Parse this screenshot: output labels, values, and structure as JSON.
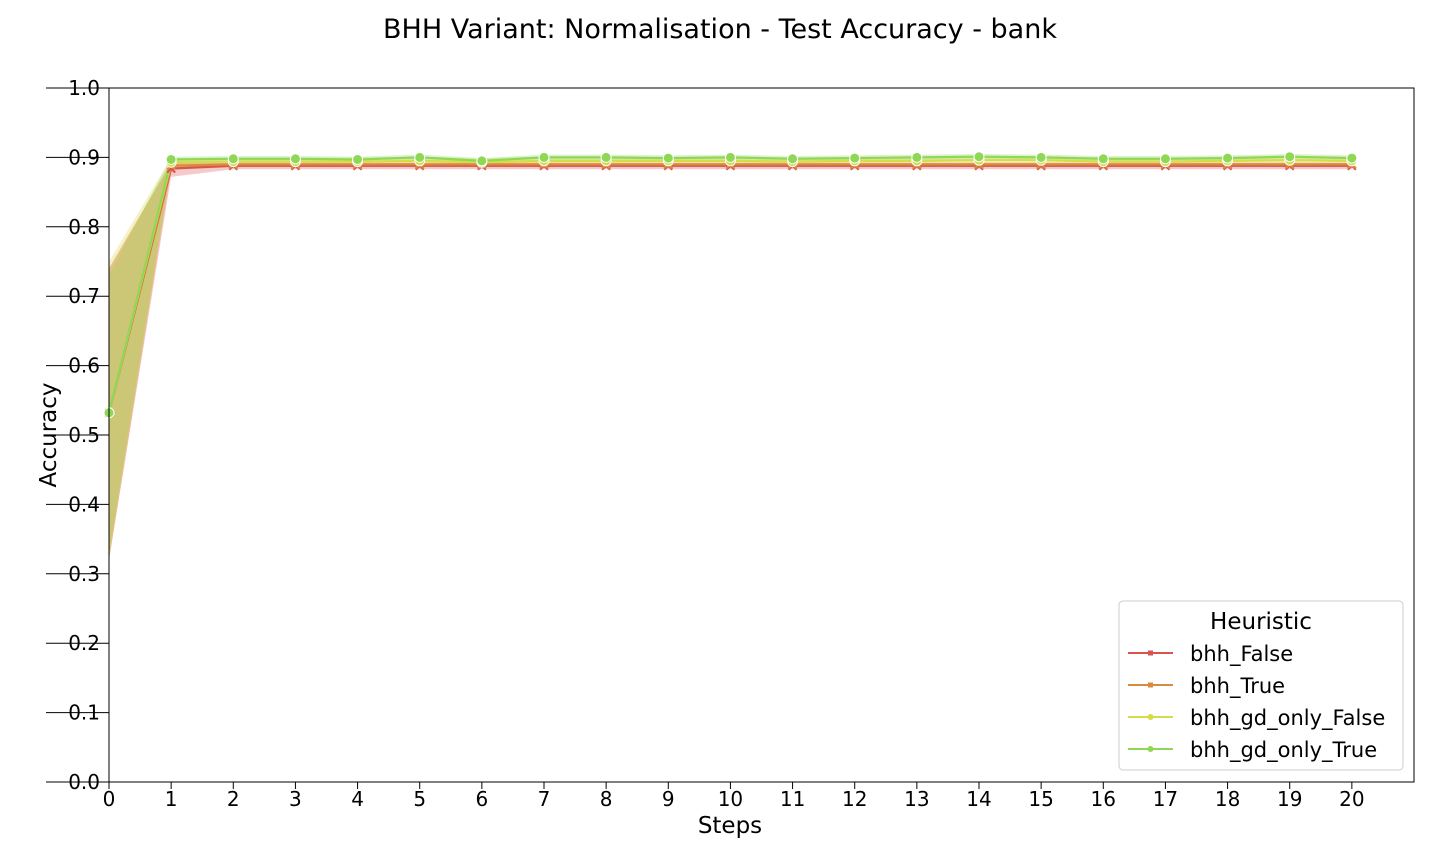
{
  "chart_data": {
    "type": "line",
    "title": "BHH Variant: Normalisation - Test Accuracy - bank",
    "xlabel": "Steps",
    "ylabel": "Accuracy",
    "xlim": [
      0,
      21
    ],
    "ylim": [
      0.0,
      1.0
    ],
    "x_ticks": [
      0,
      1,
      2,
      3,
      4,
      5,
      6,
      7,
      8,
      9,
      10,
      11,
      12,
      13,
      14,
      15,
      16,
      17,
      18,
      19,
      20
    ],
    "y_ticks": [
      0.0,
      0.1,
      0.2,
      0.3,
      0.4,
      0.5,
      0.6,
      0.7,
      0.8,
      0.9,
      1.0
    ],
    "legend": {
      "title": "Heuristic",
      "placement": "lower-right"
    },
    "x": [
      0,
      1,
      2,
      3,
      4,
      5,
      6,
      7,
      8,
      9,
      10,
      11,
      12,
      13,
      14,
      15,
      16,
      17,
      18,
      19,
      20
    ],
    "series": [
      {
        "name": "bhh_False",
        "color": "#d9534f",
        "marker": "x",
        "values": [
          0.532,
          0.884,
          0.888,
          0.888,
          0.888,
          0.888,
          0.888,
          0.888,
          0.888,
          0.888,
          0.888,
          0.888,
          0.888,
          0.888,
          0.888,
          0.888,
          0.888,
          0.888,
          0.888,
          0.888,
          0.888
        ],
        "band_lower": [
          0.32,
          0.872,
          0.883,
          0.883,
          0.883,
          0.883,
          0.883,
          0.883,
          0.883,
          0.883,
          0.883,
          0.883,
          0.883,
          0.883,
          0.883,
          0.883,
          0.883,
          0.883,
          0.883,
          0.883,
          0.883
        ],
        "band_upper": [
          0.74,
          0.892,
          0.892,
          0.892,
          0.892,
          0.892,
          0.892,
          0.892,
          0.892,
          0.892,
          0.892,
          0.892,
          0.892,
          0.892,
          0.892,
          0.892,
          0.892,
          0.892,
          0.892,
          0.892,
          0.892
        ]
      },
      {
        "name": "bhh_True",
        "color": "#d98a3f",
        "marker": "x",
        "values": [
          0.532,
          0.888,
          0.89,
          0.89,
          0.89,
          0.89,
          0.89,
          0.89,
          0.89,
          0.89,
          0.89,
          0.89,
          0.89,
          0.89,
          0.89,
          0.89,
          0.89,
          0.89,
          0.89,
          0.89,
          0.89
        ],
        "band_lower": [
          0.32,
          0.882,
          0.886,
          0.886,
          0.886,
          0.886,
          0.886,
          0.886,
          0.886,
          0.886,
          0.886,
          0.886,
          0.886,
          0.886,
          0.886,
          0.886,
          0.886,
          0.886,
          0.886,
          0.886,
          0.886
        ],
        "band_upper": [
          0.74,
          0.893,
          0.893,
          0.893,
          0.893,
          0.893,
          0.893,
          0.893,
          0.893,
          0.893,
          0.893,
          0.893,
          0.893,
          0.893,
          0.893,
          0.893,
          0.893,
          0.893,
          0.893,
          0.893,
          0.893
        ]
      },
      {
        "name": "bhh_gd_only_False",
        "color": "#d4dc4a",
        "marker": "o",
        "values": [
          0.532,
          0.893,
          0.894,
          0.894,
          0.894,
          0.895,
          0.893,
          0.895,
          0.895,
          0.895,
          0.895,
          0.894,
          0.895,
          0.895,
          0.896,
          0.896,
          0.894,
          0.894,
          0.895,
          0.896,
          0.895
        ],
        "band_lower": [
          0.32,
          0.888,
          0.89,
          0.89,
          0.89,
          0.891,
          0.889,
          0.891,
          0.891,
          0.891,
          0.891,
          0.89,
          0.891,
          0.891,
          0.892,
          0.892,
          0.89,
          0.89,
          0.891,
          0.892,
          0.891
        ],
        "band_upper": [
          0.75,
          0.899,
          0.9,
          0.9,
          0.9,
          0.901,
          0.899,
          0.901,
          0.901,
          0.901,
          0.901,
          0.9,
          0.901,
          0.901,
          0.902,
          0.902,
          0.9,
          0.9,
          0.901,
          0.902,
          0.901
        ]
      },
      {
        "name": "bhh_gd_only_True",
        "color": "#8fd855",
        "marker": "o",
        "values": [
          0.532,
          0.897,
          0.898,
          0.898,
          0.897,
          0.9,
          0.895,
          0.9,
          0.9,
          0.899,
          0.9,
          0.898,
          0.899,
          0.9,
          0.901,
          0.9,
          0.898,
          0.898,
          0.899,
          0.901,
          0.899
        ],
        "band_lower": [
          0.33,
          0.893,
          0.894,
          0.894,
          0.893,
          0.896,
          0.891,
          0.896,
          0.896,
          0.895,
          0.896,
          0.894,
          0.895,
          0.896,
          0.897,
          0.896,
          0.894,
          0.894,
          0.895,
          0.897,
          0.895
        ],
        "band_upper": [
          0.73,
          0.901,
          0.902,
          0.902,
          0.901,
          0.904,
          0.899,
          0.904,
          0.904,
          0.903,
          0.904,
          0.902,
          0.903,
          0.904,
          0.905,
          0.904,
          0.902,
          0.902,
          0.903,
          0.905,
          0.903
        ]
      }
    ]
  }
}
